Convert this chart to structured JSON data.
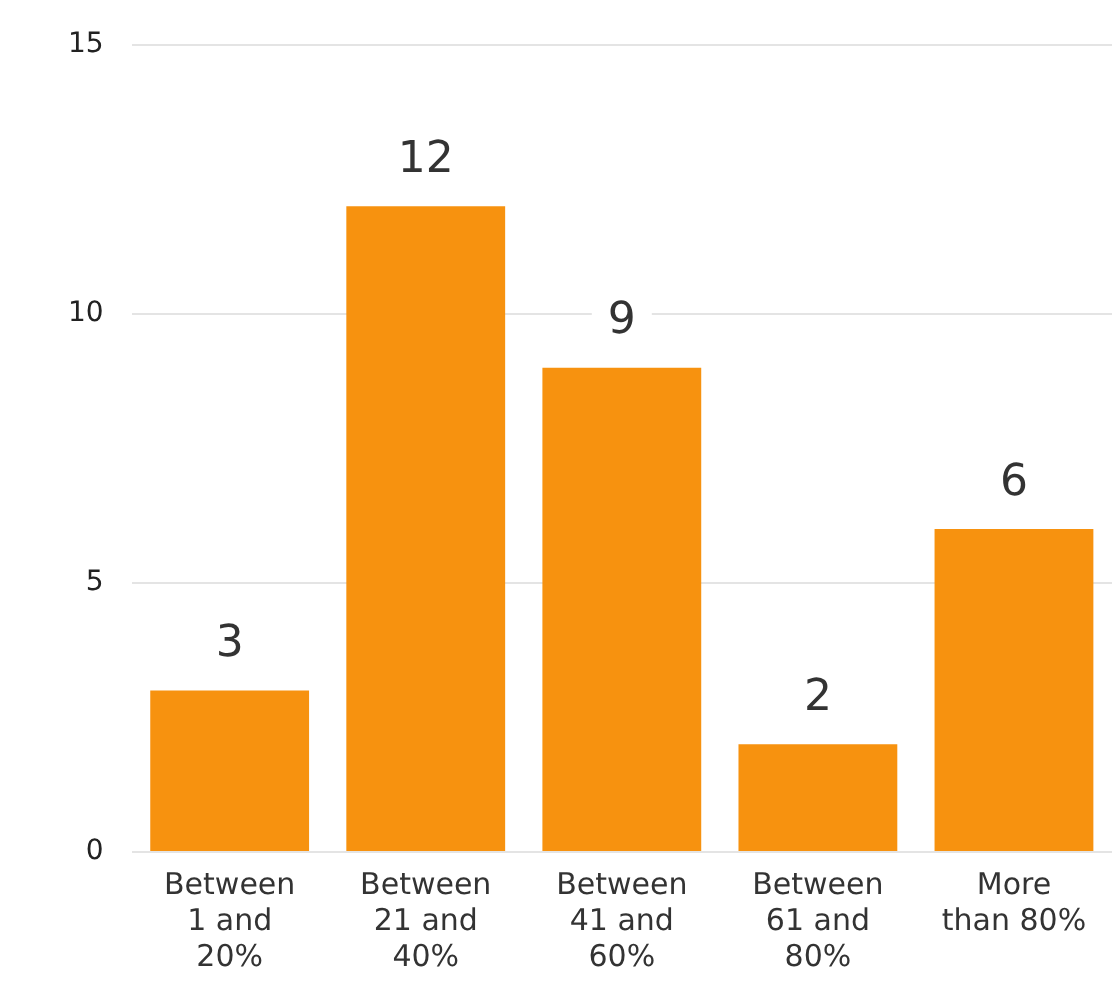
{
  "chart_data": {
    "type": "bar",
    "categories": [
      "Between 1 and 20%",
      "Between 21 and 40%",
      "Between 41 and 60%",
      "Between 61 and 80%",
      "More than 80%"
    ],
    "values": [
      3,
      12,
      9,
      2,
      6
    ],
    "color": "#f7920f",
    "ylim": [
      0,
      15
    ],
    "yticks": [
      0,
      5,
      10,
      15
    ],
    "grid": "y",
    "data_labels": true
  }
}
